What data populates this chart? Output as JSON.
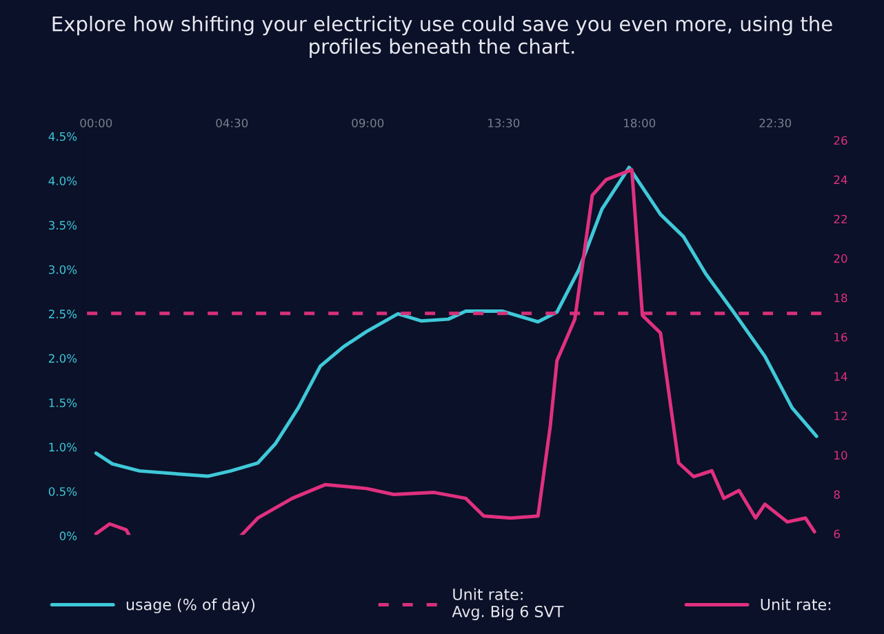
{
  "chart_data": {
    "type": "line",
    "title": "Explore how shifting your electricity use could save you even more, using the\nprofiles beneath the chart.",
    "xlim": [
      -0.4,
      24.2
    ],
    "xticks": [
      {
        "value": 0,
        "label": "00:00"
      },
      {
        "value": 4.5,
        "label": "04:30"
      },
      {
        "value": 9,
        "label": "09:00"
      },
      {
        "value": 13.5,
        "label": "13:30"
      },
      {
        "value": 18,
        "label": "18:00"
      },
      {
        "value": 22.5,
        "label": "22:30"
      }
    ],
    "ylim": [
      0,
      4.5
    ],
    "yticks": [
      {
        "value": 0,
        "label": "0%"
      },
      {
        "value": 0.5,
        "label": "0.5%"
      },
      {
        "value": 1,
        "label": "1.0%"
      },
      {
        "value": 1.5,
        "label": "1.5%"
      },
      {
        "value": 2,
        "label": "2.0%"
      },
      {
        "value": 2.5,
        "label": "2.5%"
      },
      {
        "value": 3,
        "label": "3.0%"
      },
      {
        "value": 3.5,
        "label": "3.5%"
      },
      {
        "value": 4,
        "label": "4.0%"
      },
      {
        "value": 4.5,
        "label": "4.5%"
      }
    ],
    "y2lim": [
      5.9,
      26.2
    ],
    "y2ticks": [
      6,
      8,
      10,
      12,
      14,
      16,
      18,
      20,
      22,
      24,
      26
    ],
    "grid": false,
    "legend": "bottom",
    "marker": "none",
    "series": [
      {
        "name": "usage (% of day)",
        "color": "#3fc8d8",
        "line_style": "solid",
        "x": [
          0,
          0.54,
          1.44,
          3.7,
          4.46,
          5.36,
          5.95,
          6.7,
          7.43,
          8.2,
          8.96,
          10.0,
          10.77,
          11.67,
          12.25,
          13.47,
          14.64,
          15.27,
          16.0,
          16.76,
          17.66,
          18.7,
          19.46,
          20.2,
          21.1,
          22.16,
          23.06,
          23.87
        ],
        "values": [
          0.93,
          0.81,
          0.73,
          0.67,
          0.73,
          0.82,
          1.04,
          1.44,
          1.91,
          2.13,
          2.3,
          2.5,
          2.42,
          2.44,
          2.53,
          2.53,
          2.41,
          2.52,
          3.0,
          3.68,
          4.15,
          3.62,
          3.37,
          2.95,
          2.53,
          2.02,
          1.44,
          1.12
        ]
      },
      {
        "name": "Unit rate:\nAvg. Big 6 SVT",
        "color": "#d6307a",
        "line_style": "dashed",
        "axis": "y2",
        "x": [
          -0.3,
          24.1
        ],
        "values": [
          17.2,
          17.2
        ]
      },
      {
        "name": "Unit rate:",
        "color": "#e0307f",
        "line_style": "solid",
        "axis": "y2",
        "x": [
          0,
          0.45,
          1.0,
          1.1,
          3.0,
          4.8,
          5.36,
          6.5,
          7.6,
          8.96,
          9.86,
          11.2,
          12.25,
          12.84,
          13.74,
          14.64,
          15.05,
          15.27,
          15.86,
          16.44,
          16.9,
          17.75,
          18.1,
          18.7,
          19.3,
          19.8,
          20.4,
          20.8,
          21.3,
          21.85,
          22.16,
          22.9,
          23.5,
          23.8
        ],
        "values": [
          6.0,
          6.5,
          6.2,
          5.9,
          null,
          5.9,
          6.8,
          7.8,
          8.5,
          8.3,
          8.0,
          8.1,
          7.8,
          6.9,
          6.8,
          6.9,
          11.5,
          14.8,
          16.9,
          23.2,
          24.0,
          24.5,
          17.1,
          16.2,
          9.6,
          8.9,
          9.2,
          7.8,
          8.2,
          6.8,
          7.5,
          6.6,
          6.8,
          6.1
        ]
      }
    ]
  }
}
